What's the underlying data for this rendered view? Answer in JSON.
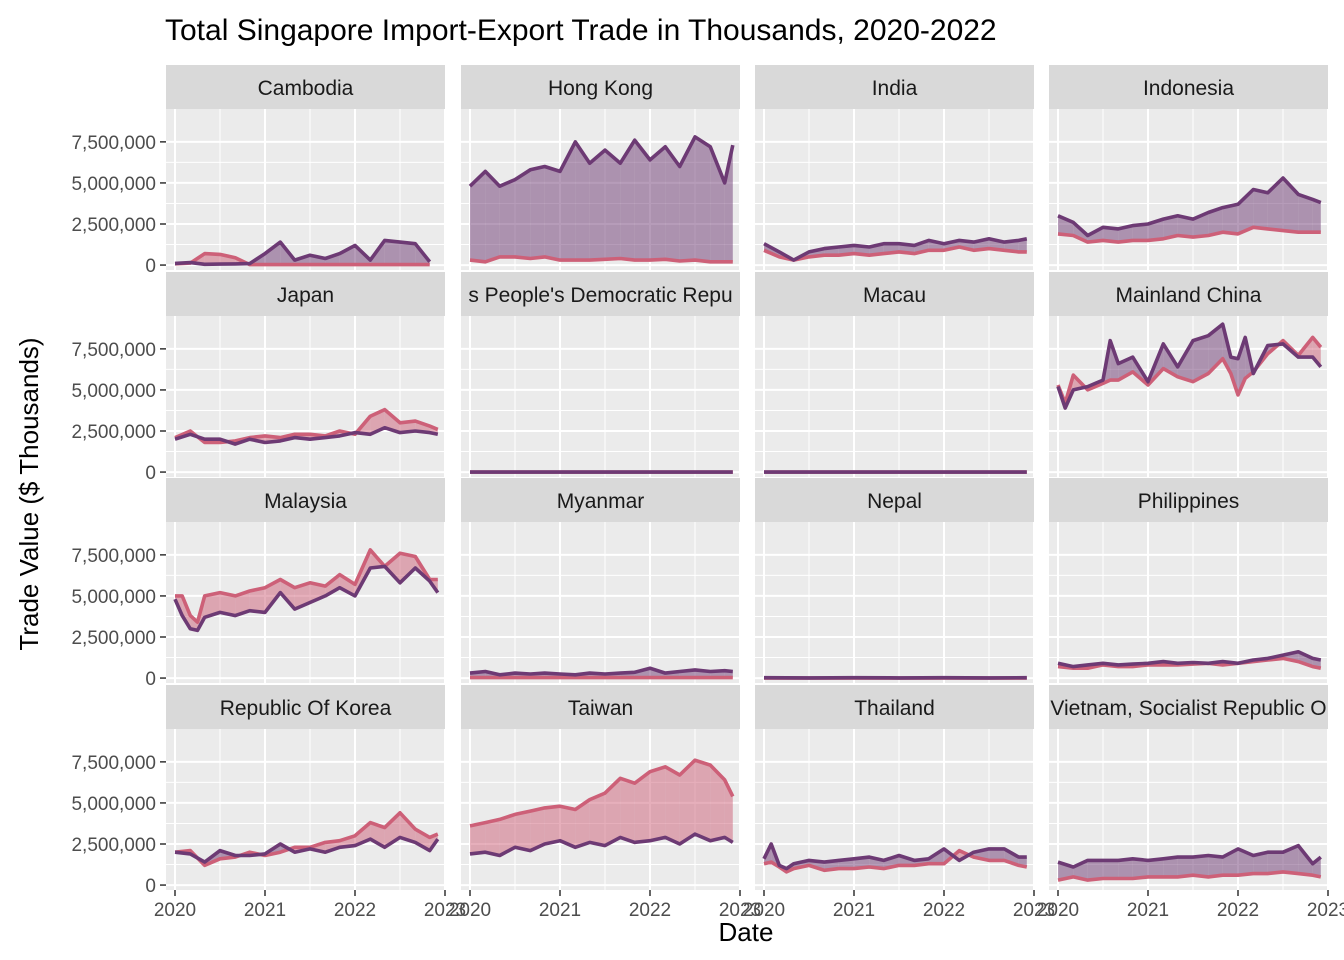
{
  "chart_data": {
    "type": "area",
    "title": "Total Singapore Import-Export Trade in Thousands, 2020-2022",
    "xlabel": "Date",
    "ylabel": "Trade Value ($ Thousands)",
    "xlim": [
      2019.9,
      2023.0
    ],
    "ylim": [
      -300000,
      9500000
    ],
    "x_ticks": [
      2020,
      2021,
      2022,
      2023
    ],
    "x_tick_labels": [
      "2020",
      "2021",
      "2022",
      "2023"
    ],
    "y_ticks": [
      0,
      2500000,
      5000000,
      7500000
    ],
    "y_tick_labels": [
      "0",
      "2,500,000",
      "5,000,000",
      "7,500,000"
    ],
    "grid": true,
    "legend": "none",
    "colors": {
      "series_a": "#6d3a74",
      "series_b": "#cd6078",
      "fill_a_higher": "#6d3a74",
      "fill_b_higher": "#cd6078",
      "panel_bg": "#ebebeb",
      "strip_bg": "#d9d9d9",
      "grid": "#ffffff",
      "axis_text": "#4d4d4d"
    },
    "panels": [
      {
        "label": "Cambodia",
        "x": [
          2020.0,
          2020.17,
          2020.33,
          2020.5,
          2020.67,
          2020.83,
          2021.0,
          2021.17,
          2021.33,
          2021.5,
          2021.67,
          2021.83,
          2022.0,
          2022.17,
          2022.33,
          2022.5,
          2022.67,
          2022.83
        ],
        "series_a": [
          100000,
          150000,
          50000,
          60000,
          70000,
          90000,
          700000,
          1400000,
          300000,
          600000,
          400000,
          700000,
          1200000,
          300000,
          1500000,
          1400000,
          1300000,
          200000
        ],
        "series_b": [
          80000,
          120000,
          700000,
          650000,
          450000,
          30000,
          30000,
          30000,
          30000,
          30000,
          30000,
          30000,
          30000,
          30000,
          30000,
          30000,
          30000,
          30000
        ]
      },
      {
        "label": "Hong Kong",
        "x": [
          2020.0,
          2020.17,
          2020.33,
          2020.5,
          2020.67,
          2020.83,
          2021.0,
          2021.17,
          2021.33,
          2021.5,
          2021.67,
          2021.83,
          2022.0,
          2022.17,
          2022.33,
          2022.5,
          2022.67,
          2022.83,
          2022.92
        ],
        "series_a": [
          4800000,
          5700000,
          4800000,
          5200000,
          5800000,
          6000000,
          5700000,
          7500000,
          6200000,
          7000000,
          6200000,
          7600000,
          6400000,
          7200000,
          6000000,
          7800000,
          7200000,
          5000000,
          7300000
        ],
        "series_b": [
          300000,
          200000,
          500000,
          500000,
          400000,
          500000,
          300000,
          300000,
          300000,
          350000,
          400000,
          300000,
          300000,
          350000,
          250000,
          300000,
          200000,
          200000,
          200000
        ]
      },
      {
        "label": "India",
        "x": [
          2020.0,
          2020.17,
          2020.33,
          2020.5,
          2020.67,
          2020.83,
          2021.0,
          2021.17,
          2021.33,
          2021.5,
          2021.67,
          2021.83,
          2022.0,
          2022.17,
          2022.33,
          2022.5,
          2022.67,
          2022.83,
          2022.92
        ],
        "series_a": [
          1300000,
          800000,
          300000,
          800000,
          1000000,
          1100000,
          1200000,
          1100000,
          1300000,
          1300000,
          1200000,
          1500000,
          1300000,
          1500000,
          1400000,
          1600000,
          1400000,
          1500000,
          1600000
        ],
        "series_b": [
          900000,
          500000,
          300000,
          500000,
          600000,
          600000,
          700000,
          600000,
          700000,
          800000,
          700000,
          900000,
          900000,
          1100000,
          900000,
          1000000,
          900000,
          800000,
          800000
        ]
      },
      {
        "label": "Indonesia",
        "x": [
          2020.0,
          2020.17,
          2020.33,
          2020.5,
          2020.67,
          2020.83,
          2021.0,
          2021.17,
          2021.33,
          2021.5,
          2021.67,
          2021.83,
          2022.0,
          2022.17,
          2022.33,
          2022.5,
          2022.67,
          2022.83,
          2022.92
        ],
        "series_a": [
          3000000,
          2600000,
          1800000,
          2300000,
          2200000,
          2400000,
          2500000,
          2800000,
          3000000,
          2800000,
          3200000,
          3500000,
          3700000,
          4600000,
          4400000,
          5300000,
          4300000,
          4000000,
          3800000
        ],
        "series_b": [
          1900000,
          1800000,
          1400000,
          1500000,
          1400000,
          1500000,
          1500000,
          1600000,
          1800000,
          1700000,
          1800000,
          2000000,
          1900000,
          2300000,
          2200000,
          2100000,
          2000000,
          2000000,
          2000000
        ]
      },
      {
        "label": "Japan",
        "x": [
          2020.0,
          2020.17,
          2020.33,
          2020.5,
          2020.67,
          2020.83,
          2021.0,
          2021.17,
          2021.33,
          2021.5,
          2021.67,
          2021.83,
          2022.0,
          2022.17,
          2022.33,
          2022.5,
          2022.67,
          2022.83,
          2022.92
        ],
        "series_a": [
          2000000,
          2300000,
          2000000,
          2000000,
          1700000,
          2000000,
          1800000,
          1900000,
          2100000,
          2000000,
          2100000,
          2200000,
          2400000,
          2300000,
          2700000,
          2400000,
          2500000,
          2400000,
          2300000
        ],
        "series_b": [
          2100000,
          2500000,
          1800000,
          1800000,
          1900000,
          2100000,
          2200000,
          2100000,
          2300000,
          2300000,
          2200000,
          2500000,
          2300000,
          3400000,
          3800000,
          3000000,
          3100000,
          2800000,
          2600000
        ]
      },
      {
        "label": "s People's Democratic Repu",
        "x": [
          2020.0,
          2020.5,
          2021.0,
          2021.5,
          2022.0,
          2022.5,
          2022.92
        ],
        "series_a": [
          0,
          0,
          0,
          0,
          0,
          0,
          0
        ],
        "series_b": [
          0,
          0,
          0,
          0,
          0,
          0,
          0
        ]
      },
      {
        "label": "Macau",
        "x": [
          2020.0,
          2020.5,
          2021.0,
          2021.5,
          2022.0,
          2022.5,
          2022.92
        ],
        "series_a": [
          0,
          0,
          0,
          0,
          0,
          0,
          0
        ],
        "series_b": [
          0,
          0,
          0,
          0,
          0,
          0,
          0
        ]
      },
      {
        "label": "Mainland China",
        "x": [
          2020.0,
          2020.08,
          2020.17,
          2020.33,
          2020.5,
          2020.58,
          2020.67,
          2020.83,
          2021.0,
          2021.17,
          2021.33,
          2021.5,
          2021.67,
          2021.83,
          2021.92,
          2022.0,
          2022.08,
          2022.17,
          2022.33,
          2022.5,
          2022.67,
          2022.83,
          2022.92
        ],
        "series_a": [
          5200000,
          3900000,
          5000000,
          5200000,
          5600000,
          8000000,
          6600000,
          7000000,
          5500000,
          7800000,
          6400000,
          8000000,
          8300000,
          9000000,
          7000000,
          6900000,
          8200000,
          6000000,
          7700000,
          7800000,
          7000000,
          7000000,
          6400000
        ],
        "series_b": [
          5300000,
          4200000,
          5900000,
          5000000,
          5400000,
          5600000,
          5600000,
          6100000,
          5300000,
          6300000,
          5800000,
          5500000,
          6000000,
          6900000,
          6000000,
          4700000,
          5700000,
          6100000,
          7200000,
          8000000,
          7100000,
          8200000,
          7600000
        ]
      },
      {
        "label": "Malaysia",
        "x": [
          2020.0,
          2020.08,
          2020.17,
          2020.25,
          2020.33,
          2020.5,
          2020.67,
          2020.83,
          2021.0,
          2021.17,
          2021.33,
          2021.5,
          2021.67,
          2021.83,
          2022.0,
          2022.17,
          2022.33,
          2022.5,
          2022.67,
          2022.83,
          2022.92
        ],
        "series_a": [
          4800000,
          3800000,
          3000000,
          2900000,
          3700000,
          4000000,
          3800000,
          4100000,
          4000000,
          5200000,
          4200000,
          4600000,
          5000000,
          5500000,
          5000000,
          6700000,
          6800000,
          5800000,
          6700000,
          5900000,
          5200000
        ],
        "series_b": [
          5000000,
          5000000,
          3800000,
          3400000,
          5000000,
          5200000,
          5000000,
          5300000,
          5500000,
          6000000,
          5500000,
          5800000,
          5600000,
          6300000,
          5700000,
          7800000,
          6800000,
          7600000,
          7400000,
          6000000,
          6000000
        ]
      },
      {
        "label": "Myanmar",
        "x": [
          2020.0,
          2020.17,
          2020.33,
          2020.5,
          2020.67,
          2020.83,
          2021.0,
          2021.17,
          2021.33,
          2021.5,
          2021.67,
          2021.83,
          2022.0,
          2022.17,
          2022.33,
          2022.5,
          2022.67,
          2022.83,
          2022.92
        ],
        "series_a": [
          300000,
          400000,
          200000,
          300000,
          250000,
          300000,
          250000,
          200000,
          300000,
          250000,
          300000,
          350000,
          600000,
          300000,
          400000,
          500000,
          400000,
          450000,
          400000
        ],
        "series_b": [
          30000,
          30000,
          30000,
          30000,
          30000,
          30000,
          30000,
          30000,
          30000,
          30000,
          30000,
          30000,
          30000,
          30000,
          30000,
          30000,
          30000,
          30000,
          30000
        ]
      },
      {
        "label": "Nepal",
        "x": [
          2020.0,
          2020.5,
          2021.0,
          2021.5,
          2022.0,
          2022.5,
          2022.92
        ],
        "series_a": [
          20000,
          10000,
          20000,
          10000,
          20000,
          10000,
          20000
        ],
        "series_b": [
          0,
          0,
          0,
          0,
          0,
          0,
          0
        ]
      },
      {
        "label": "Philippines",
        "x": [
          2020.0,
          2020.17,
          2020.33,
          2020.5,
          2020.67,
          2020.83,
          2021.0,
          2021.17,
          2021.33,
          2021.5,
          2021.67,
          2021.83,
          2022.0,
          2022.17,
          2022.33,
          2022.5,
          2022.67,
          2022.83,
          2022.92
        ],
        "series_a": [
          900000,
          700000,
          800000,
          900000,
          800000,
          850000,
          900000,
          1000000,
          900000,
          950000,
          900000,
          1000000,
          900000,
          1100000,
          1200000,
          1400000,
          1600000,
          1200000,
          1100000
        ],
        "series_b": [
          700000,
          600000,
          600000,
          800000,
          700000,
          700000,
          800000,
          800000,
          800000,
          850000,
          900000,
          800000,
          900000,
          1000000,
          1100000,
          1200000,
          1000000,
          700000,
          600000
        ]
      },
      {
        "label": "Republic Of Korea",
        "x": [
          2020.0,
          2020.17,
          2020.33,
          2020.5,
          2020.67,
          2020.83,
          2021.0,
          2021.17,
          2021.33,
          2021.5,
          2021.67,
          2021.83,
          2022.0,
          2022.17,
          2022.33,
          2022.5,
          2022.67,
          2022.83,
          2022.92
        ],
        "series_a": [
          2000000,
          1900000,
          1400000,
          2100000,
          1800000,
          1800000,
          1900000,
          2500000,
          2000000,
          2200000,
          2000000,
          2300000,
          2400000,
          2800000,
          2300000,
          2900000,
          2600000,
          2100000,
          2800000
        ],
        "series_b": [
          2000000,
          2100000,
          1200000,
          1600000,
          1700000,
          2000000,
          1800000,
          2000000,
          2300000,
          2300000,
          2600000,
          2700000,
          3000000,
          3800000,
          3500000,
          4400000,
          3400000,
          2900000,
          3100000
        ]
      },
      {
        "label": "Taiwan",
        "x": [
          2020.0,
          2020.17,
          2020.33,
          2020.5,
          2020.67,
          2020.83,
          2021.0,
          2021.17,
          2021.33,
          2021.5,
          2021.67,
          2021.83,
          2022.0,
          2022.17,
          2022.33,
          2022.5,
          2022.67,
          2022.83,
          2022.92
        ],
        "series_a": [
          1900000,
          2000000,
          1800000,
          2300000,
          2100000,
          2500000,
          2700000,
          2300000,
          2600000,
          2400000,
          2900000,
          2600000,
          2700000,
          2900000,
          2500000,
          3100000,
          2700000,
          2900000,
          2600000
        ],
        "series_b": [
          3600000,
          3800000,
          4000000,
          4300000,
          4500000,
          4700000,
          4800000,
          4600000,
          5200000,
          5600000,
          6500000,
          6200000,
          6900000,
          7200000,
          6700000,
          7600000,
          7300000,
          6400000,
          5400000
        ]
      },
      {
        "label": "Thailand",
        "x": [
          2020.0,
          2020.08,
          2020.17,
          2020.25,
          2020.33,
          2020.5,
          2020.67,
          2020.83,
          2021.0,
          2021.17,
          2021.33,
          2021.5,
          2021.67,
          2021.83,
          2022.0,
          2022.17,
          2022.33,
          2022.5,
          2022.67,
          2022.83,
          2022.92
        ],
        "series_a": [
          1600000,
          2500000,
          1200000,
          1000000,
          1300000,
          1500000,
          1400000,
          1500000,
          1600000,
          1700000,
          1500000,
          1800000,
          1500000,
          1600000,
          2200000,
          1500000,
          2000000,
          2200000,
          2200000,
          1700000,
          1700000
        ],
        "series_b": [
          1300000,
          1400000,
          1100000,
          800000,
          1000000,
          1200000,
          900000,
          1000000,
          1000000,
          1100000,
          1000000,
          1200000,
          1200000,
          1300000,
          1300000,
          2100000,
          1700000,
          1500000,
          1500000,
          1200000,
          1100000
        ]
      },
      {
        "label": "Vietnam, Socialist Republic O",
        "x": [
          2020.0,
          2020.17,
          2020.33,
          2020.5,
          2020.67,
          2020.83,
          2021.0,
          2021.17,
          2021.33,
          2021.5,
          2021.67,
          2021.83,
          2022.0,
          2022.17,
          2022.33,
          2022.5,
          2022.67,
          2022.83,
          2022.92
        ],
        "series_a": [
          1400000,
          1100000,
          1500000,
          1500000,
          1500000,
          1600000,
          1500000,
          1600000,
          1700000,
          1700000,
          1800000,
          1700000,
          2200000,
          1800000,
          2000000,
          2000000,
          2400000,
          1300000,
          1700000
        ],
        "series_b": [
          300000,
          500000,
          300000,
          400000,
          400000,
          400000,
          500000,
          500000,
          500000,
          600000,
          500000,
          600000,
          600000,
          700000,
          700000,
          800000,
          700000,
          600000,
          500000
        ]
      }
    ]
  }
}
